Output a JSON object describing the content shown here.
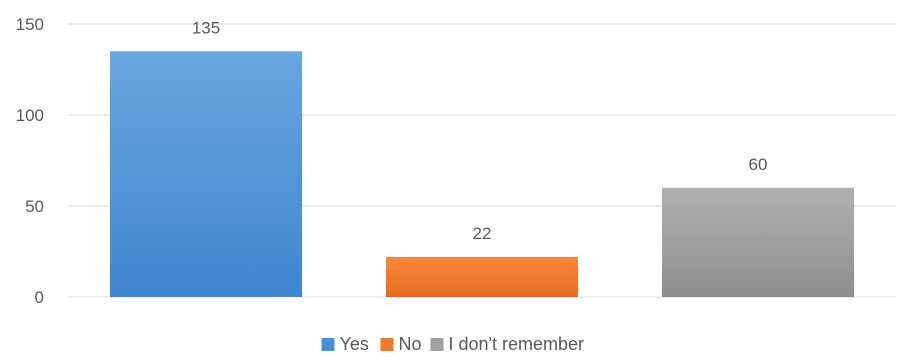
{
  "chart_data": {
    "type": "bar",
    "categories": [
      "Yes",
      "No",
      "I don't remember"
    ],
    "values": [
      135,
      22,
      60
    ],
    "colors": [
      "#4a90d6",
      "#ee7a2c",
      "#a0a0a0"
    ],
    "ylim": [
      0,
      150
    ],
    "yticks": [
      0,
      50,
      100,
      150
    ],
    "grid": true,
    "legend": "bottom",
    "data_labels": true
  }
}
